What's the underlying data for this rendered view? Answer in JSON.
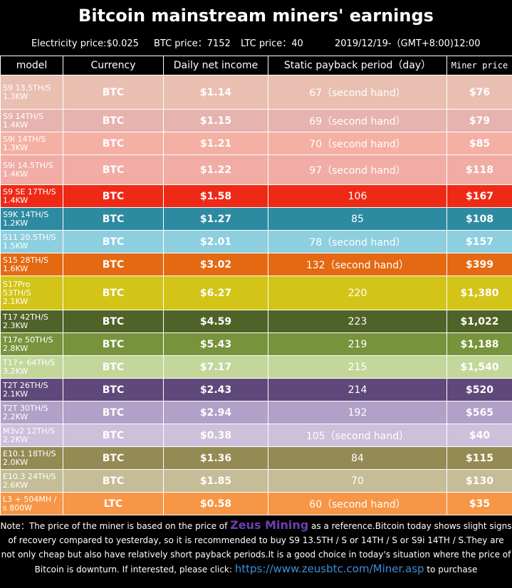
{
  "title": "Bitcoin mainstream miners' earnings",
  "subtitle": {
    "electricity": "Electricity price:$0.025",
    "btc": "BTC price：7152",
    "ltc": "LTC price：40",
    "date": "2019/12/19-（GMT+8:00)12:00"
  },
  "columns": [
    "model",
    "Currency",
    "Daily net income",
    "Static payback period（day）",
    "Miner price"
  ],
  "rows": [
    {
      "model": "S9 13.5TH/S\n1.3KW",
      "currency": "BTC",
      "income": "$1.14",
      "payback": "67（second hand）",
      "price": "$76",
      "bg": "#e9bfb1",
      "height": 48
    },
    {
      "model": "S9   14TH/S\n1.4KW",
      "currency": "BTC",
      "income": "$1.15",
      "payback": "69（second hand）",
      "price": "$79",
      "bg": "#e6b3ae",
      "height": 32
    },
    {
      "model": "S9i  14TH/S\n1.3KW",
      "currency": "BTC",
      "income": "$1.21",
      "payback": "70（second hand）",
      "price": "$85",
      "bg": "#f4b0a3",
      "height": 32
    },
    {
      "model": "S9i  14.5TH/S\n1.4KW",
      "currency": "BTC",
      "income": "$1.22",
      "payback": "97（second hand）",
      "price": "$118",
      "bg": "#f1aca5",
      "height": 42
    },
    {
      "model": "S9 SE  17TH/S\n1.4KW",
      "currency": "BTC",
      "income": "$1.58",
      "payback": "106",
      "price": "$167",
      "bg": "#ee2a16",
      "height": 32
    },
    {
      "model": "S9K   14TH/S\n1.2KW",
      "currency": "BTC",
      "income": "$1.27",
      "payback": "85",
      "price": "$108",
      "bg": "#2d8ba1",
      "height": 32
    },
    {
      "model": "S11  20.5TH/S\n1.5KW",
      "currency": "BTC",
      "income": "$2.01",
      "payback": "78（second hand）",
      "price": "$157",
      "bg": "#8ecfdf",
      "height": 32
    },
    {
      "model": "S15  28TH/S\n1.6KW",
      "currency": "BTC",
      "income": "$3.02",
      "payback": "132（second hand）",
      "price": "$399",
      "bg": "#e46912",
      "height": 32
    },
    {
      "model": "S17Pro\n53TH/S\n2.1KW",
      "currency": "BTC",
      "income": "$6.27",
      "payback": "220",
      "price": "$1,380",
      "bg": "#d3c418",
      "height": 48
    },
    {
      "model": "T17  42TH/S\n2.3KW",
      "currency": "BTC",
      "income": "$4.59",
      "payback": "223",
      "price": "$1,022",
      "bg": "#4f6228",
      "height": 32
    },
    {
      "model": "T17e 50TH/S\n2.8KW",
      "currency": "BTC",
      "income": "$5.43",
      "payback": "219",
      "price": "$1,188",
      "bg": "#77933c",
      "height": 32
    },
    {
      "model": "T17+ 64TH/S\n3.2KW",
      "currency": "BTC",
      "income": "$7.17",
      "payback": "215",
      "price": "$1,540",
      "bg": "#c3d79b",
      "height": 32
    },
    {
      "model": "T2T  26TH/S\n2.1KW",
      "currency": "BTC",
      "income": "$2.43",
      "payback": "214",
      "price": "$520",
      "bg": "#5f497a",
      "height": 32
    },
    {
      "model": "T2T  30TH/S\n2.2KW",
      "currency": "BTC",
      "income": "$2.94",
      "payback": "192",
      "price": "$565",
      "bg": "#b1a0c7",
      "height": 32
    },
    {
      "model": "M3v2 12TH/S\n2.2KW",
      "currency": "BTC",
      "income": "$0.38",
      "payback": "105（second hand）",
      "price": "$40",
      "bg": "#ccc0da",
      "height": 32
    },
    {
      "model": "E10.1 18TH/S\n2.0KW",
      "currency": "BTC",
      "income": "$1.36",
      "payback": "84",
      "price": "$115",
      "bg": "#948a54",
      "height": 32
    },
    {
      "model": "E10.3 24TH/S\n2.6KW",
      "currency": "BTC",
      "income": "$1.85",
      "payback": "70",
      "price": "$130",
      "bg": "#c4bd97",
      "height": 32
    },
    {
      "model": "L3 + 504MH /\ns  800W",
      "currency": "LTC",
      "income": "$0.58",
      "payback": "60（second hand）",
      "price": "$35",
      "bg": "#f79646",
      "height": 32
    }
  ],
  "note": {
    "text1": "Note：The price of the miner is based on the price of ",
    "brand": "Zeus Mining",
    "text2": " as a reference.Bitcoin today shows slight signs of recovery compared to yesterday, so it is recommended to buy S9 13.5TH / S or 14TH / S or S9i 14TH / S.They are not only cheap but also have relatively short payback periods.It is a good choice in today's situation where the price of Bitcoin is downturn. If interested, please click: ",
    "link": "https://www.zeusbtc.com/Miner.asp",
    "text3": " to purchase"
  }
}
